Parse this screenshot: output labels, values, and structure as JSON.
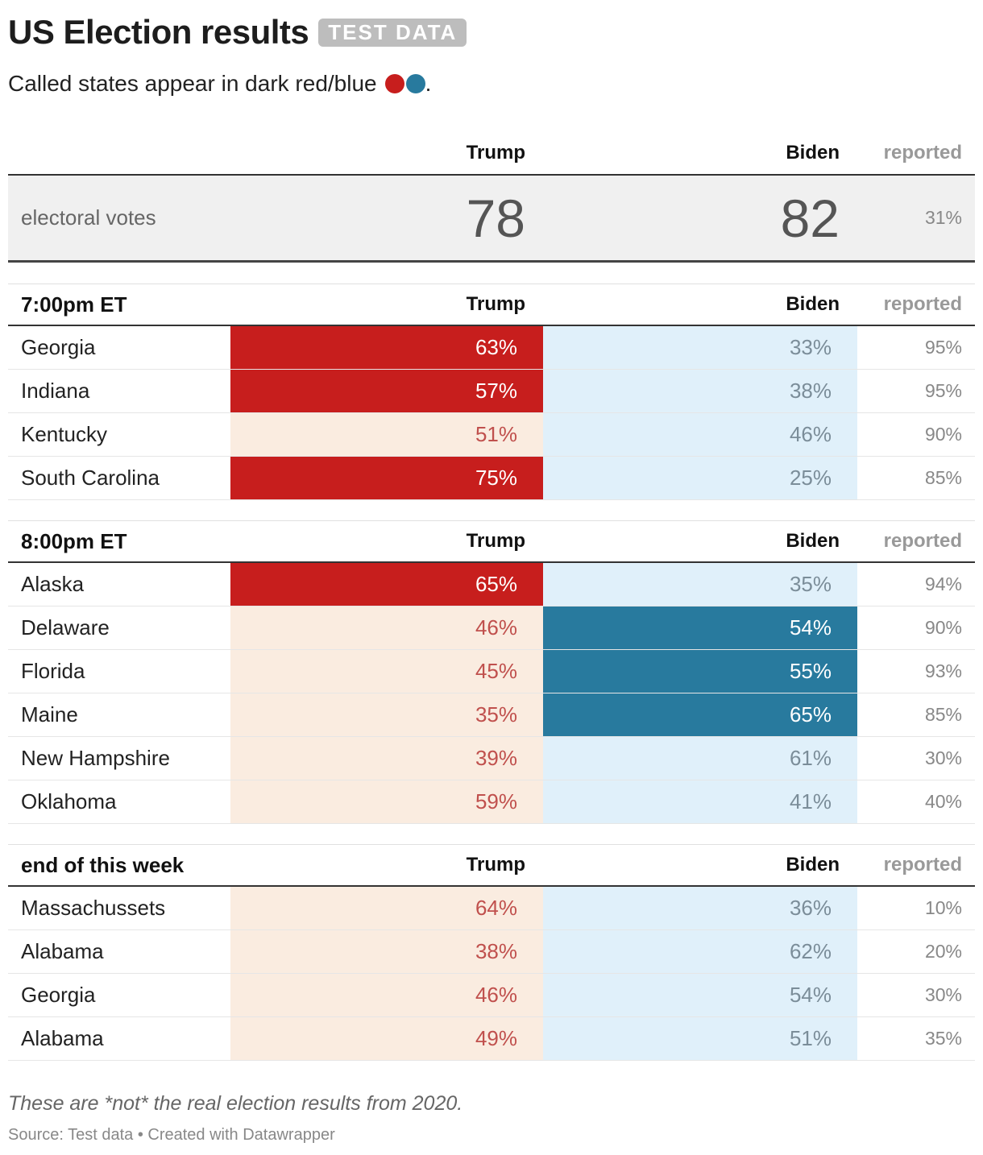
{
  "header": {
    "title": "US Election results",
    "badge": "TEST DATA"
  },
  "subtitle": {
    "text": "Called states appear in dark red/blue",
    "period": "."
  },
  "colors": {
    "trump_called": "#c71e1d",
    "trump_lead": "#faece0",
    "trump_text": "#c0504d",
    "biden_called": "#287a9e",
    "biden_lead": "#e0f0fa",
    "biden_text": "#7b8d99"
  },
  "columns": {
    "trump": "Trump",
    "biden": "Biden",
    "reported": "reported"
  },
  "electoral": {
    "label": "electoral votes",
    "trump": "78",
    "biden": "82",
    "reported": "31%"
  },
  "chart_data": {
    "type": "table",
    "title": "US Election results",
    "groups": [
      {
        "label": "7:00pm ET",
        "rows": [
          {
            "state": "Georgia",
            "trump": "63%",
            "biden": "33%",
            "reported": "95%",
            "called": "trump"
          },
          {
            "state": "Indiana",
            "trump": "57%",
            "biden": "38%",
            "reported": "95%",
            "called": "trump"
          },
          {
            "state": "Kentucky",
            "trump": "51%",
            "biden": "46%",
            "reported": "90%",
            "called": "none"
          },
          {
            "state": "South Carolina",
            "trump": "75%",
            "biden": "25%",
            "reported": "85%",
            "called": "trump"
          }
        ]
      },
      {
        "label": "8:00pm ET",
        "rows": [
          {
            "state": "Alaska",
            "trump": "65%",
            "biden": "35%",
            "reported": "94%",
            "called": "trump"
          },
          {
            "state": "Delaware",
            "trump": "46%",
            "biden": "54%",
            "reported": "90%",
            "called": "biden"
          },
          {
            "state": "Florida",
            "trump": "45%",
            "biden": "55%",
            "reported": "93%",
            "called": "biden"
          },
          {
            "state": "Maine",
            "trump": "35%",
            "biden": "65%",
            "reported": "85%",
            "called": "biden"
          },
          {
            "state": "New Hampshire",
            "trump": "39%",
            "biden": "61%",
            "reported": "30%",
            "called": "none"
          },
          {
            "state": "Oklahoma",
            "trump": "59%",
            "biden": "41%",
            "reported": "40%",
            "called": "none"
          }
        ]
      },
      {
        "label": "end of this week",
        "rows": [
          {
            "state": "Massachussets",
            "trump": "64%",
            "biden": "36%",
            "reported": "10%",
            "called": "none"
          },
          {
            "state": "Alabama",
            "trump": "38%",
            "biden": "62%",
            "reported": "20%",
            "called": "none"
          },
          {
            "state": "Georgia",
            "trump": "46%",
            "biden": "54%",
            "reported": "30%",
            "called": "none"
          },
          {
            "state": "Alabama",
            "trump": "49%",
            "biden": "51%",
            "reported": "35%",
            "called": "none"
          }
        ]
      }
    ]
  },
  "footer": {
    "notes": "These are *not* the real election results from 2020.",
    "source": "Source: Test data • Created with Datawrapper"
  }
}
